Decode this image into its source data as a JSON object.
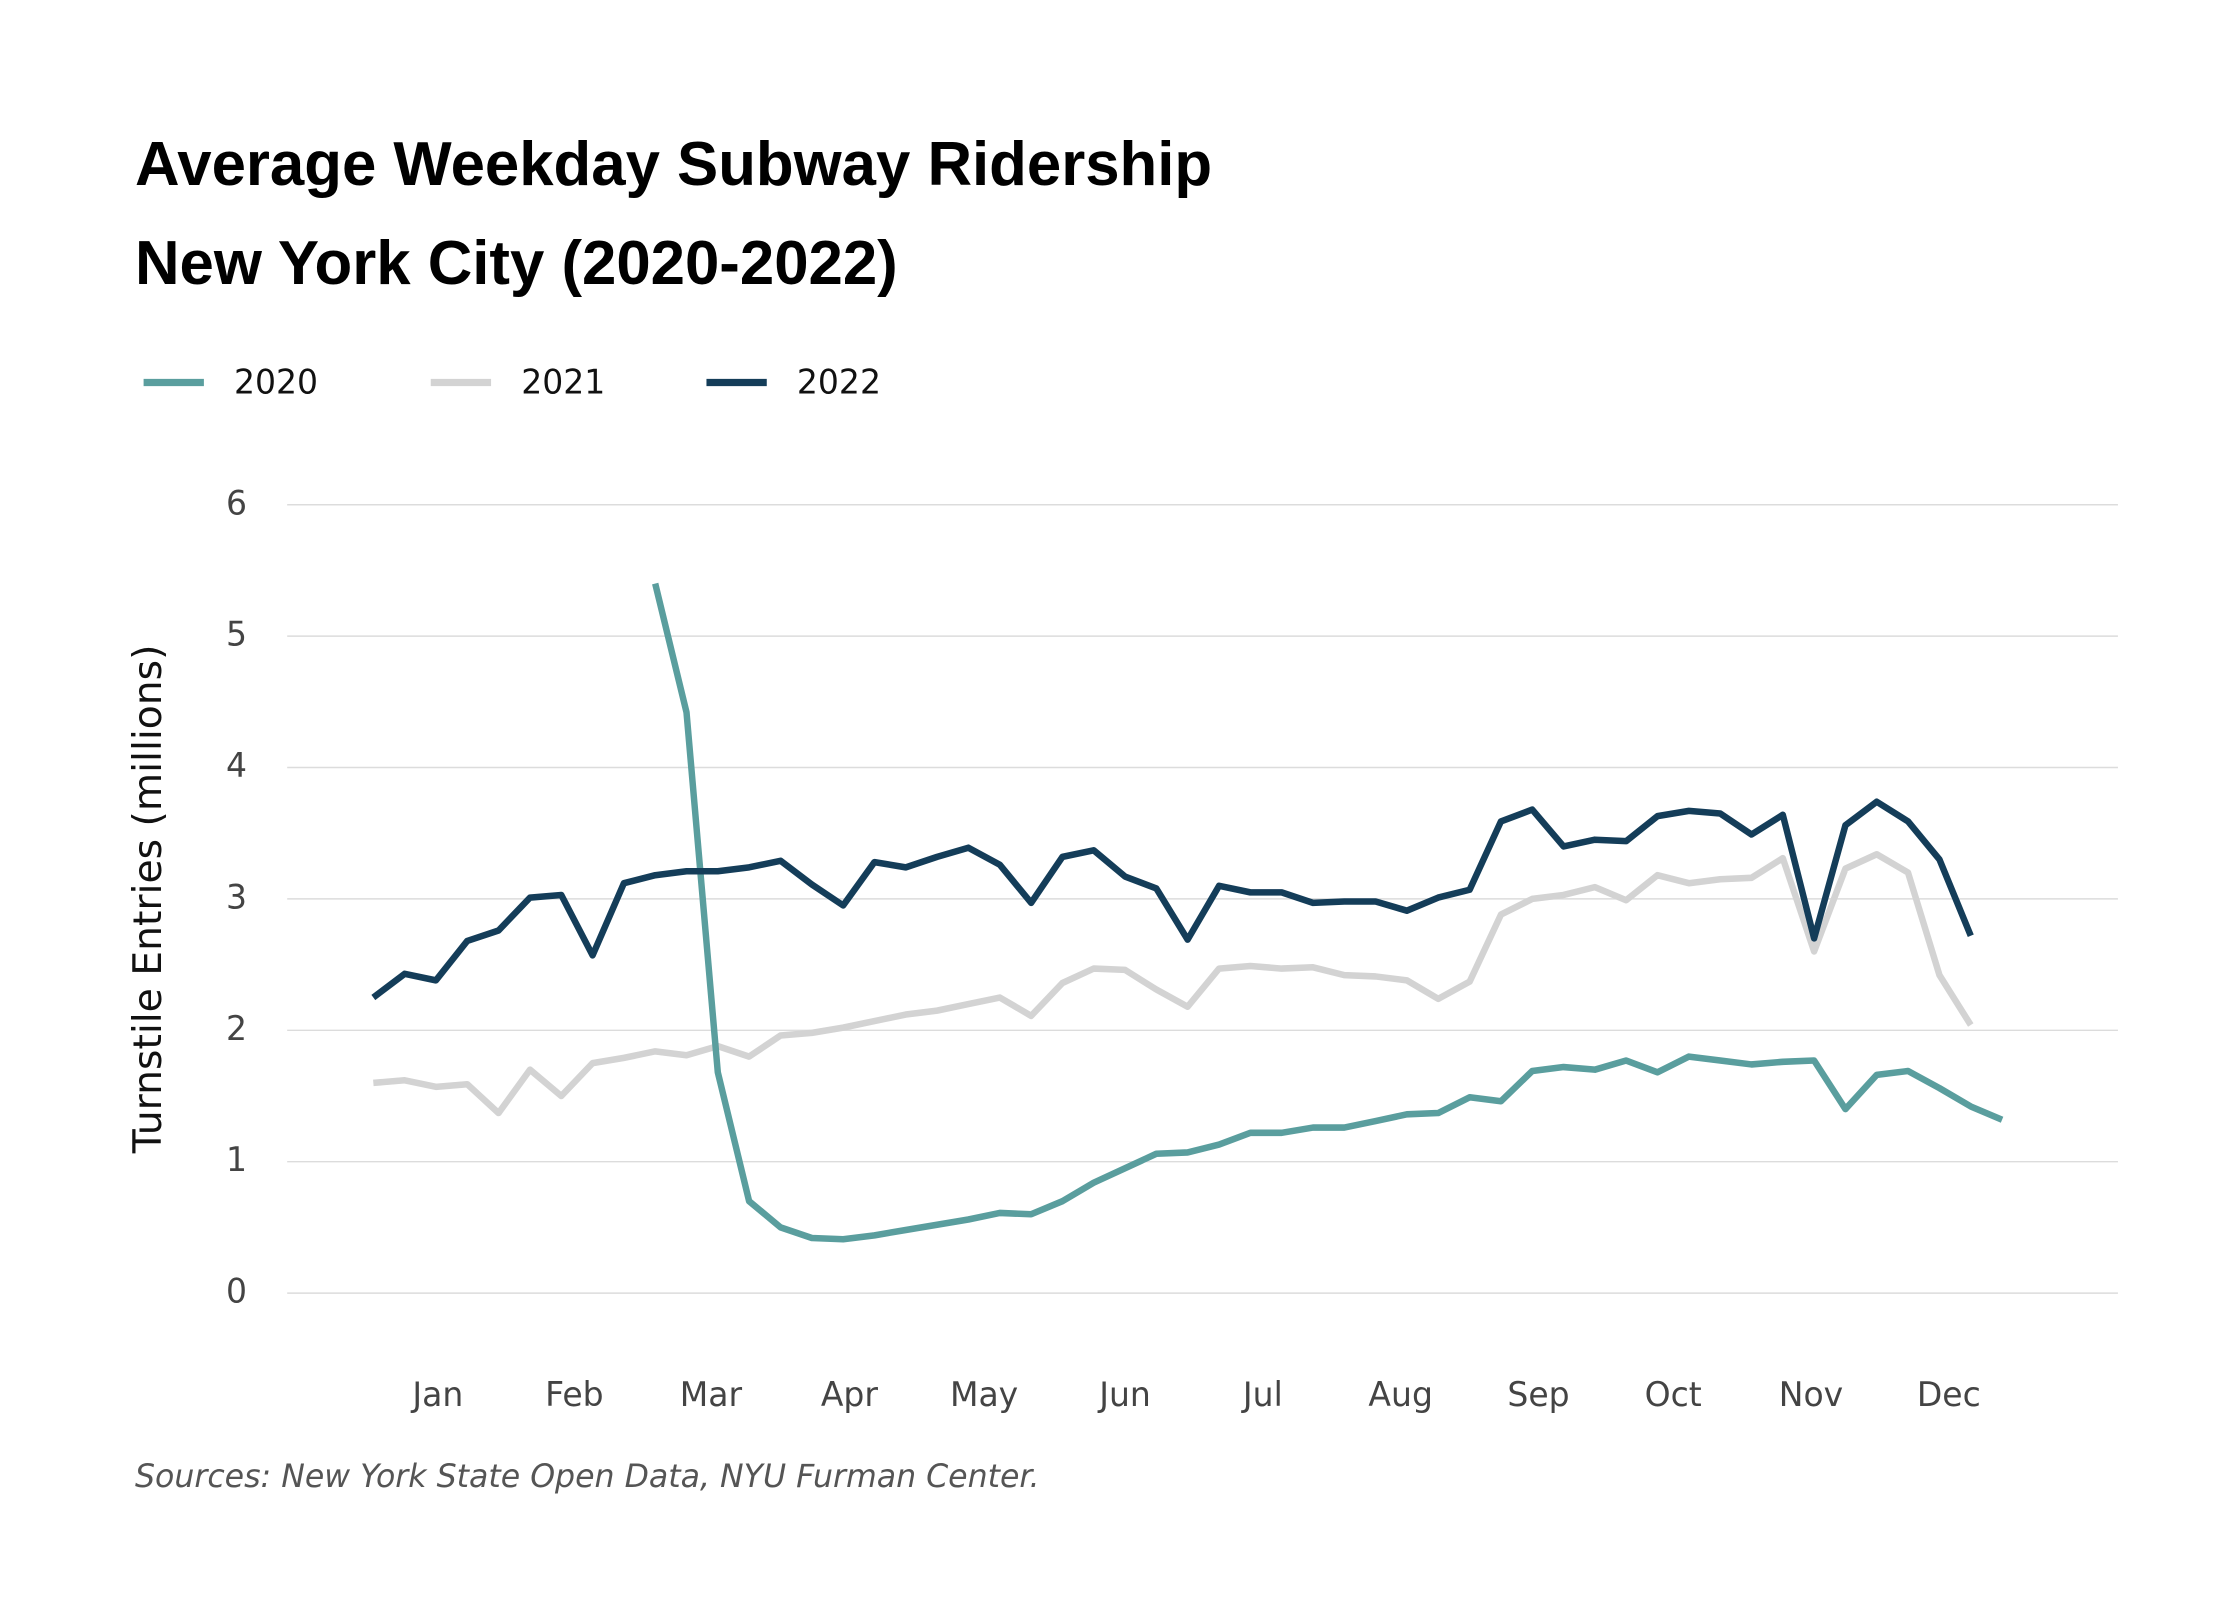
{
  "chart_data": {
    "type": "line",
    "title": [
      "Average Weekday Subway Ridership",
      "New York City (2020-2022)"
    ],
    "y_label": "Turnstile Entries (millions)",
    "source": "Sources: New York State Open Data, NYU Furman Center.",
    "x": [
      1,
      2,
      3,
      4,
      5,
      6,
      7,
      8,
      9,
      10,
      11,
      12,
      13,
      14,
      15,
      16,
      17,
      18,
      19,
      20,
      21,
      22,
      23,
      24,
      25,
      26,
      27,
      28,
      29,
      30,
      31,
      32,
      33,
      34,
      35,
      36,
      37,
      38,
      39,
      40,
      41,
      42,
      43,
      44,
      45,
      46,
      47,
      48,
      49,
      50,
      51,
      52,
      53
    ],
    "xlim": [
      -1.75,
      56.7
    ],
    "xticks": [
      {
        "value": 3.06,
        "label": "Jan"
      },
      {
        "value": 7.42,
        "label": "Feb"
      },
      {
        "value": 11.78,
        "label": "Mar"
      },
      {
        "value": 16.2,
        "label": "Apr"
      },
      {
        "value": 20.5,
        "label": "May"
      },
      {
        "value": 25.0,
        "label": "Jun"
      },
      {
        "value": 29.4,
        "label": "Jul"
      },
      {
        "value": 33.8,
        "label": "Aug"
      },
      {
        "value": 38.2,
        "label": "Sep"
      },
      {
        "value": 42.5,
        "label": "Oct"
      },
      {
        "value": 46.9,
        "label": "Nov"
      },
      {
        "value": 51.3,
        "label": "Dec"
      }
    ],
    "ylim": [
      0,
      6
    ],
    "yticks": [
      0,
      1,
      2,
      3,
      4,
      5,
      6
    ],
    "grid": true,
    "series": [
      {
        "name": "2020",
        "color": "#5a9e9e",
        "values": [
          null,
          null,
          null,
          null,
          null,
          null,
          null,
          null,
          null,
          5.4,
          4.42,
          1.68,
          0.7,
          0.5,
          0.42,
          0.41,
          0.44,
          0.48,
          0.52,
          0.56,
          0.61,
          0.6,
          0.7,
          0.84,
          0.95,
          1.06,
          1.07,
          1.13,
          1.22,
          1.22,
          1.26,
          1.26,
          1.31,
          1.36,
          1.37,
          1.49,
          1.46,
          1.69,
          1.72,
          1.7,
          1.77,
          1.68,
          1.8,
          1.77,
          1.74,
          1.76,
          1.77,
          1.4,
          1.66,
          1.69,
          1.56,
          1.42,
          1.32
        ]
      },
      {
        "name": "2021",
        "color": "#d3d3d3",
        "values": [
          1.6,
          1.62,
          1.57,
          1.59,
          1.37,
          1.7,
          1.5,
          1.75,
          1.79,
          1.84,
          1.81,
          1.88,
          1.8,
          1.96,
          1.98,
          2.02,
          2.07,
          2.12,
          2.15,
          2.2,
          2.25,
          2.11,
          2.36,
          2.47,
          2.46,
          2.31,
          2.18,
          2.47,
          2.49,
          2.47,
          2.48,
          2.42,
          2.41,
          2.38,
          2.24,
          2.37,
          2.88,
          3.0,
          3.03,
          3.09,
          2.99,
          3.18,
          3.12,
          3.15,
          3.16,
          3.31,
          2.6,
          3.23,
          3.34,
          3.2,
          2.42,
          2.04,
          null
        ]
      },
      {
        "name": "2022",
        "color": "#143d59",
        "values": [
          2.25,
          2.43,
          2.38,
          2.68,
          2.76,
          3.01,
          3.03,
          2.57,
          3.12,
          3.18,
          3.21,
          3.21,
          3.24,
          3.29,
          3.11,
          2.95,
          3.28,
          3.24,
          3.32,
          3.39,
          3.26,
          2.97,
          3.32,
          3.37,
          3.17,
          3.08,
          2.69,
          3.1,
          3.05,
          3.05,
          2.97,
          2.98,
          2.98,
          2.91,
          3.01,
          3.07,
          3.59,
          3.68,
          3.4,
          3.45,
          3.44,
          3.63,
          3.67,
          3.65,
          3.49,
          3.64,
          2.7,
          3.56,
          3.74,
          3.59,
          3.3,
          2.72,
          null
        ]
      }
    ]
  }
}
